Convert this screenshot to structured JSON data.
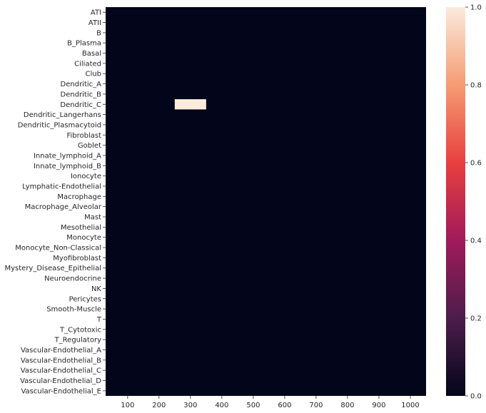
{
  "chart_data": {
    "type": "heatmap",
    "title": "",
    "xlabel": "",
    "ylabel": "",
    "rows": [
      "ATI",
      "ATII",
      "B",
      "B_Plasma",
      "Basal",
      "Ciliated",
      "Club",
      "Dendritic_A",
      "Dendritic_B",
      "Dendritic_C",
      "Dendritic_Langerhans",
      "Dendritic_Plasmacytoid",
      "Fibroblast",
      "Goblet",
      "Innate_lymphoid_A",
      "Innate_lymphoid_B",
      "Ionocyte",
      "Lymphatic-Endothelial",
      "Macrophage",
      "Macrophage_Alveolar",
      "Mast",
      "Mesothelial",
      "Monocyte",
      "Monocyte_Non-Classical",
      "Myofibroblast",
      "Mystery_Disease_Epithelial",
      "Neuroendocrine",
      "NK",
      "Pericytes",
      "Smooth-Muscle",
      "T",
      "T_Cytotoxic",
      "T_Regulatory",
      "Vascular-Endothelial_A",
      "Vascular-Endothelial_B",
      "Vascular-Endothelial_C",
      "Vascular-Endothelial_D",
      "Vascular-Endothelial_E"
    ],
    "xlim": [
      30,
      1050
    ],
    "x_ticks": [
      100,
      200,
      300,
      400,
      500,
      600,
      700,
      800,
      900,
      1000
    ],
    "x_tick_labels": [
      "100",
      "200",
      "300",
      "400",
      "500",
      "600",
      "700",
      "800",
      "900",
      "1000"
    ],
    "background_value": 0,
    "nonzero_cells": [
      {
        "row": "Dendritic_C",
        "x_start": 250,
        "x_end": 350,
        "value": 1.0
      }
    ],
    "colorbar": {
      "min": 0.0,
      "max": 1.0,
      "ticks": [
        "0.0",
        "0.2",
        "0.4",
        "0.6",
        "0.8",
        "1.0"
      ],
      "colormap": "rocket",
      "colors": [
        "#03051a",
        "#4c1d4b",
        "#a11a5b",
        "#e83f3f",
        "#f69c73",
        "#faebdd"
      ]
    }
  }
}
